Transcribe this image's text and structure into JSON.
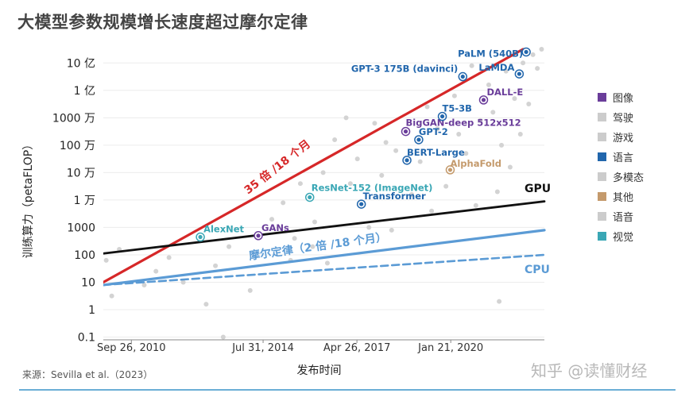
{
  "title": "大模型参数规模增长速度超过摩尔定律",
  "source": "来源：Sevilla et al.（2023）",
  "watermark": "知乎 @读懂财经",
  "chart_data": {
    "type": "scatter",
    "title": "大模型参数规模增长速度超过摩尔定律",
    "xlabel": "发布时间",
    "ylabel": "训练算力（petaFLOP）",
    "y_scale": "log",
    "xlim": [
      "2009-12-01",
      "2022-10-15"
    ],
    "ylim_log10": [
      -1.1,
      9.5
    ],
    "x_ticks": [
      {
        "date": "2010-09-26",
        "label": "Sep 26, 2010"
      },
      {
        "date": "2014-07-31",
        "label": "Jul 31, 2014"
      },
      {
        "date": "2017-04-26",
        "label": "Apr 26, 2017"
      },
      {
        "date": "2020-01-21",
        "label": "Jan 21, 2020"
      }
    ],
    "y_ticks": [
      {
        "log10": -1,
        "label": "0.1"
      },
      {
        "log10": 0,
        "label": "1"
      },
      {
        "log10": 1,
        "label": "10"
      },
      {
        "log10": 2,
        "label": "100"
      },
      {
        "log10": 3,
        "label": "1000"
      },
      {
        "log10": 4,
        "label": "1 万"
      },
      {
        "log10": 5,
        "label": "10 万"
      },
      {
        "log10": 6,
        "label": "100 万"
      },
      {
        "log10": 7,
        "label": "1000 万"
      },
      {
        "log10": 8,
        "label": "1 亿"
      },
      {
        "log10": 9,
        "label": "10 亿"
      }
    ],
    "legend": {
      "placement": "right",
      "items": [
        {
          "label": "图像",
          "color": "#6a3d9a"
        },
        {
          "label": "驾驶",
          "color": "#cccccc"
        },
        {
          "label": "游戏",
          "color": "#cccccc"
        },
        {
          "label": "语言",
          "color": "#2166ac"
        },
        {
          "label": "多模态",
          "color": "#cccccc"
        },
        {
          "label": "其他",
          "color": "#c49a6c"
        },
        {
          "label": "语音",
          "color": "#cccccc"
        },
        {
          "label": "视觉",
          "color": "#3aa7b5"
        }
      ]
    },
    "trend_lines": [
      {
        "label": "35 倍 /18 个月",
        "color": "#d62728",
        "from": {
          "date": "2009-12-01",
          "log10": 1.0
        },
        "to": {
          "date": "2022-03-01",
          "log10": 9.5
        }
      },
      {
        "label": "GPU",
        "color": "#111111",
        "from": {
          "date": "2009-12-01",
          "log10": 2.05
        },
        "to": {
          "date": "2022-10-15",
          "log10": 3.95
        }
      },
      {
        "label": "摩尔定律（2 倍 /18 个月）",
        "color": "#5b9bd5",
        "from": {
          "date": "2009-12-01",
          "log10": 0.9
        },
        "to": {
          "date": "2022-10-15",
          "log10": 2.9
        }
      },
      {
        "label": "CPU",
        "color": "#5b9bd5",
        "dashed": true,
        "from": {
          "date": "2009-12-01",
          "log10": 0.9
        },
        "to": {
          "date": "2022-10-15",
          "log10": 2.0
        }
      }
    ],
    "labeled_points": [
      {
        "name": "AlexNet",
        "date": "2012-09-30",
        "log10": 2.65,
        "category": "视觉",
        "color": "#3aa7b5"
      },
      {
        "name": "GANs",
        "date": "2014-06-10",
        "log10": 2.7,
        "category": "图像",
        "color": "#6a3d9a"
      },
      {
        "name": "ResNet-152 (ImageNet)",
        "date": "2015-12-10",
        "log10": 4.1,
        "category": "视觉",
        "color": "#3aa7b5"
      },
      {
        "name": "Transformer",
        "date": "2017-06-12",
        "log10": 3.85,
        "category": "语言",
        "color": "#2166ac"
      },
      {
        "name": "BERT-Large",
        "date": "2018-10-11",
        "log10": 5.45,
        "category": "语言",
        "color": "#2166ac"
      },
      {
        "name": "GPT-2",
        "date": "2019-02-14",
        "log10": 6.2,
        "category": "语言",
        "color": "#2166ac"
      },
      {
        "name": "BigGAN-deep 512x512",
        "date": "2018-09-28",
        "log10": 6.5,
        "category": "图像",
        "color": "#6a3d9a"
      },
      {
        "name": "T5-3B",
        "date": "2019-10-23",
        "log10": 7.05,
        "category": "语言",
        "color": "#2166ac"
      },
      {
        "name": "AlphaFold",
        "date": "2020-01-15",
        "log10": 5.1,
        "category": "其他",
        "color": "#c49a6c"
      },
      {
        "name": "GPT-3 175B (davinci)",
        "date": "2020-05-28",
        "log10": 8.5,
        "category": "语言",
        "color": "#2166ac"
      },
      {
        "name": "DALL-E",
        "date": "2021-01-05",
        "log10": 7.65,
        "category": "图像",
        "color": "#6a3d9a"
      },
      {
        "name": "LaMDA",
        "date": "2022-01-20",
        "log10": 8.6,
        "category": "语言",
        "color": "#2166ac"
      },
      {
        "name": "PaLM (540B)",
        "date": "2022-04-04",
        "log10": 9.4,
        "category": "语言",
        "color": "#2166ac"
      }
    ],
    "background_points": [
      {
        "date": "2010-01-01",
        "log10": 1.8
      },
      {
        "date": "2010-03-01",
        "log10": 0.5
      },
      {
        "date": "2010-05-20",
        "log10": 2.2
      },
      {
        "date": "2011-02-10",
        "log10": 0.9
      },
      {
        "date": "2011-06-15",
        "log10": 1.4
      },
      {
        "date": "2011-11-01",
        "log10": 1.9
      },
      {
        "date": "2012-04-01",
        "log10": 1.0
      },
      {
        "date": "2012-12-01",
        "log10": 0.2
      },
      {
        "date": "2013-03-10",
        "log10": 1.6
      },
      {
        "date": "2013-08-01",
        "log10": 2.3
      },
      {
        "date": "2013-06-01",
        "log10": -1.0
      },
      {
        "date": "2014-03-15",
        "log10": 0.7
      },
      {
        "date": "2014-11-01",
        "log10": 3.3
      },
      {
        "date": "2015-03-01",
        "log10": 3.9
      },
      {
        "date": "2015-07-01",
        "log10": 2.6
      },
      {
        "date": "2015-05-20",
        "log10": 1.8
      },
      {
        "date": "2015-09-01",
        "log10": 4.6
      },
      {
        "date": "2016-02-01",
        "log10": 3.2
      },
      {
        "date": "2016-05-01",
        "log10": 5.0
      },
      {
        "date": "2016-01-10",
        "log10": 2.3
      },
      {
        "date": "2016-09-01",
        "log10": 6.2
      },
      {
        "date": "2016-06-15",
        "log10": 1.7
      },
      {
        "date": "2017-01-01",
        "log10": 7.0
      },
      {
        "date": "2017-02-15",
        "log10": 4.6
      },
      {
        "date": "2017-05-01",
        "log10": 5.5
      },
      {
        "date": "2017-09-01",
        "log10": 3.0
      },
      {
        "date": "2017-11-01",
        "log10": 6.8
      },
      {
        "date": "2018-01-15",
        "log10": 4.9
      },
      {
        "date": "2018-03-01",
        "log10": 6.1
      },
      {
        "date": "2018-05-01",
        "log10": 2.9
      },
      {
        "date": "2018-06-15",
        "log10": 5.8
      },
      {
        "date": "2018-12-01",
        "log10": 4.2
      },
      {
        "date": "2019-03-01",
        "log10": 5.4
      },
      {
        "date": "2019-05-15",
        "log10": 7.4
      },
      {
        "date": "2019-07-01",
        "log10": 3.6
      },
      {
        "date": "2019-09-01",
        "log10": 6.6
      },
      {
        "date": "2019-12-01",
        "log10": 4.5
      },
      {
        "date": "2020-03-01",
        "log10": 7.8
      },
      {
        "date": "2020-04-15",
        "log10": 6.4
      },
      {
        "date": "2020-07-01",
        "log10": 5.7
      },
      {
        "date": "2020-09-01",
        "log10": 8.9
      },
      {
        "date": "2020-10-15",
        "log10": 3.8
      },
      {
        "date": "2020-12-01",
        "log10": 6.9
      },
      {
        "date": "2021-03-01",
        "log10": 8.2
      },
      {
        "date": "2021-04-15",
        "log10": 7.2
      },
      {
        "date": "2021-06-01",
        "log10": 4.3
      },
      {
        "date": "2021-07-15",
        "log10": 6.0
      },
      {
        "date": "2021-09-01",
        "log10": 8.7
      },
      {
        "date": "2021-10-15",
        "log10": 5.2
      },
      {
        "date": "2021-06-20",
        "log10": 0.3
      },
      {
        "date": "2021-12-01",
        "log10": 7.7
      },
      {
        "date": "2022-02-01",
        "log10": 6.4
      },
      {
        "date": "2022-03-01",
        "log10": 9.0
      },
      {
        "date": "2022-05-01",
        "log10": 7.5
      },
      {
        "date": "2022-06-15",
        "log10": 9.3
      },
      {
        "date": "2022-08-01",
        "log10": 8.8
      },
      {
        "date": "2022-09-15",
        "log10": 9.5
      }
    ]
  }
}
